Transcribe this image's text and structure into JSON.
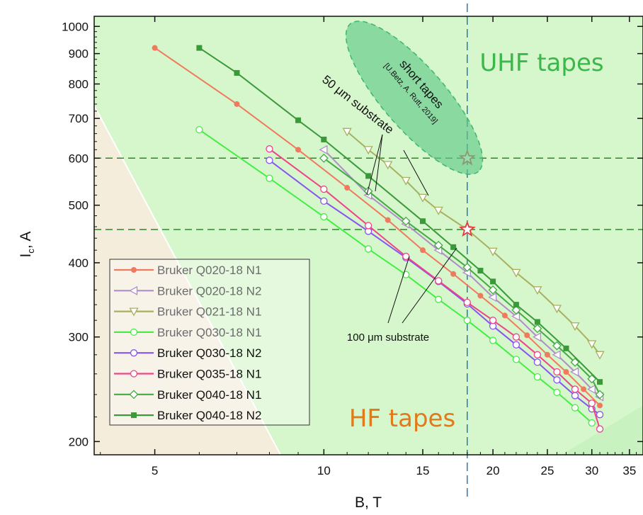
{
  "chart_data": {
    "type": "line",
    "xlabel": "B, T",
    "ylabel": "I",
    "ylabel_sub": "c",
    "ylabel_tail": ", A",
    "xscale": "log",
    "yscale": "log",
    "xlim": [
      3.9,
      37
    ],
    "ylim": [
      190,
      1040
    ],
    "x_ticks": [
      {
        "v": 5,
        "label": "5"
      },
      {
        "v": 10,
        "label": "10"
      },
      {
        "v": 15,
        "label": "15"
      },
      {
        "v": 20,
        "label": "20"
      },
      {
        "v": 25,
        "label": "25"
      },
      {
        "v": 30,
        "label": "30"
      },
      {
        "v": 35,
        "label": "35"
      }
    ],
    "y_ticks": [
      {
        "v": 200,
        "label": "200"
      },
      {
        "v": 300,
        "label": "300"
      },
      {
        "v": 400,
        "label": "400"
      },
      {
        "v": 500,
        "label": "500"
      },
      {
        "v": 600,
        "label": "600"
      },
      {
        "v": 700,
        "label": "700"
      },
      {
        "v": 800,
        "label": "800"
      },
      {
        "v": 900,
        "label": "900"
      },
      {
        "v": 1000,
        "label": "1000"
      }
    ],
    "ref_lines": {
      "horizontal": [
        600,
        455
      ],
      "vertical": [
        18
      ]
    },
    "stars": [
      {
        "x": 18,
        "y": 600
      },
      {
        "x": 18,
        "y": 455
      }
    ],
    "legend_position": "bottom-left",
    "series": [
      {
        "name": "Bruker Q020-18 N1",
        "color": "#f07a5e",
        "marker": "circle-filled",
        "x": [
          5,
          7,
          9,
          11,
          13,
          15,
          17,
          19,
          21,
          23,
          25,
          27,
          29,
          31
        ],
        "y": [
          920,
          740,
          620,
          535,
          472,
          420,
          383,
          352,
          326,
          302,
          280,
          262,
          245,
          230
        ]
      },
      {
        "name": "Bruker Q020-18 N2",
        "color": "#b08cc8",
        "marker": "triangle-left",
        "x": [
          10,
          12,
          14,
          16,
          18,
          20,
          22,
          24,
          26,
          28,
          30,
          31
        ],
        "y": [
          620,
          520,
          465,
          420,
          385,
          350,
          325,
          300,
          280,
          262,
          245,
          238
        ]
      },
      {
        "name": "Bruker Q021-18 N1",
        "color": "#a8b060",
        "marker": "triangle-down",
        "x": [
          11,
          12,
          13,
          14,
          15,
          16,
          18,
          20,
          22,
          24,
          26,
          28,
          30,
          31
        ],
        "y": [
          665,
          620,
          585,
          550,
          515,
          490,
          455,
          418,
          385,
          360,
          335,
          313,
          292,
          280
        ]
      },
      {
        "name": "Bruker Q030-18 N1",
        "color": "#44ee44",
        "marker": "circle-open",
        "x": [
          6,
          8,
          10,
          12,
          14,
          16,
          18,
          20,
          22,
          24,
          26,
          28,
          30
        ],
        "y": [
          670,
          555,
          478,
          422,
          382,
          347,
          320,
          296,
          275,
          257,
          242,
          228,
          215
        ]
      },
      {
        "name": "Bruker Q030-18 N2",
        "color": "#8855ee",
        "marker": "circle-open",
        "x": [
          8,
          10,
          12,
          14,
          16,
          18,
          20,
          22,
          24,
          26,
          28,
          30,
          31
        ],
        "y": [
          595,
          508,
          452,
          408,
          372,
          341,
          313,
          291,
          272,
          254,
          239,
          227,
          222
        ]
      },
      {
        "name": "Bruker Q035-18 N1",
        "color": "#ee4488",
        "marker": "circle-open",
        "x": [
          8,
          10,
          12,
          14,
          16,
          18,
          20,
          22,
          24,
          26,
          28,
          30,
          31
        ],
        "y": [
          622,
          532,
          462,
          410,
          373,
          343,
          320,
          300,
          280,
          262,
          245,
          232,
          210
        ]
      },
      {
        "name": "Bruker Q040-18 N1",
        "color": "#44aa44",
        "marker": "diamond-open",
        "x": [
          10,
          12,
          14,
          16,
          18,
          20,
          22,
          24,
          26,
          28,
          30,
          31
        ],
        "y": [
          600,
          528,
          470,
          428,
          393,
          360,
          333,
          310,
          290,
          272,
          255,
          240
        ]
      },
      {
        "name": "Bruker Q040-18 N2",
        "color": "#3a9a3a",
        "marker": "square-filled",
        "x": [
          6,
          7,
          9,
          10,
          12,
          15,
          17,
          19,
          20,
          22,
          24,
          27,
          31
        ],
        "y": [
          920,
          835,
          695,
          645,
          560,
          470,
          425,
          388,
          372,
          340,
          318,
          287,
          252
        ]
      }
    ],
    "annotations": {
      "uhf_label": "UHF tapes",
      "hf_label": "HF tapes",
      "short_tapes_line1": "short tapes",
      "short_tapes_line2": "[U.Betz, A. Rutt, 2019]",
      "substrate_50": "50 μm substrate",
      "substrate_100": "100 μm substrate"
    },
    "colors": {
      "uhf_region": "#c8f2c0",
      "hf_region": "#f4eddc",
      "uhf_text": "#3ab84a",
      "hf_text": "#e07a1a",
      "ellipse_fill": "#5fc98a",
      "ref_line": "#2a8a2a",
      "vline": "#2a7ab8",
      "star": "#e83a3a"
    }
  }
}
